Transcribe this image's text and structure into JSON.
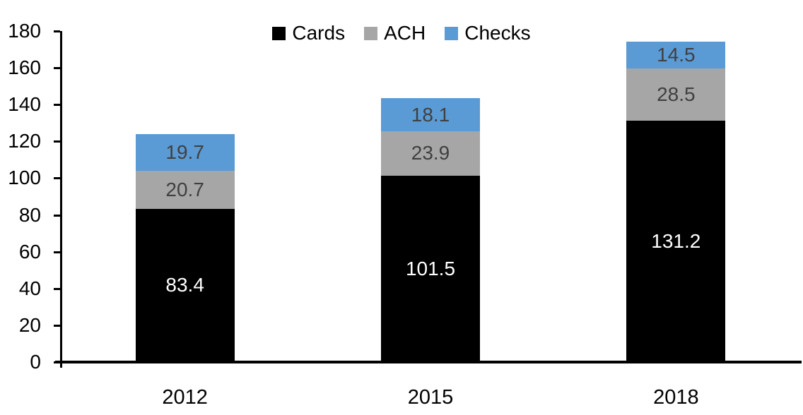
{
  "chart_data": {
    "type": "bar",
    "stacked": true,
    "title": "",
    "xlabel": "",
    "ylabel": "",
    "categories": [
      "2012",
      "2015",
      "2018"
    ],
    "series": [
      {
        "name": "Cards",
        "color": "#000000",
        "label_color": "#ffffff",
        "values": [
          83.4,
          101.5,
          131.2
        ]
      },
      {
        "name": "ACH",
        "color": "#a6a6a6",
        "label_color": "#404040",
        "values": [
          20.7,
          23.9,
          28.5
        ]
      },
      {
        "name": "Checks",
        "color": "#5b9bd5",
        "label_color": "#404040",
        "values": [
          19.7,
          18.1,
          14.5
        ]
      }
    ],
    "totals": [
      123.8,
      143.5,
      174.2
    ],
    "ylim": [
      0,
      180
    ],
    "y_ticks": [
      0,
      20,
      40,
      60,
      80,
      100,
      120,
      140,
      160,
      180
    ],
    "grid": false,
    "legend_position": "top-center",
    "axis_color": "#000000",
    "value_label_decimals": 1
  }
}
